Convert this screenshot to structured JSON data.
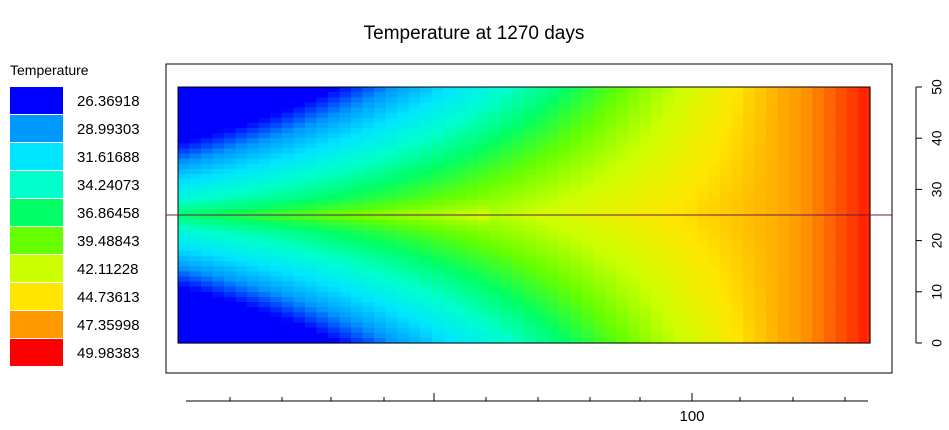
{
  "chart_data": {
    "type": "heatmap",
    "title": "Temperature at 1270 days",
    "legend": {
      "title": "Temperature",
      "placement": "left",
      "colors": [
        "#0000ff",
        "#0099ff",
        "#00e5ff",
        "#00ffcc",
        "#00ff66",
        "#66ff00",
        "#ccff00",
        "#ffe500",
        "#ff9900",
        "#ff0000"
      ],
      "labels": [
        "26.36918",
        "28.99303",
        "31.61688",
        "34.24073",
        "36.86458",
        "39.48843",
        "42.11228",
        "44.73613",
        "47.35998",
        "49.98383"
      ]
    },
    "value_range": [
      26.36918,
      49.98383
    ],
    "x_axis": {
      "tick_labels": [
        "100"
      ],
      "labeled_value": 100,
      "ylim_hint": ""
    },
    "y_axis": {
      "side": "right",
      "ticks": [
        0,
        10,
        20,
        30,
        40,
        50
      ],
      "range": [
        0,
        50
      ]
    },
    "marker_line": {
      "orientation": "horizontal",
      "y": 25,
      "color": "#6a1b4d"
    },
    "grid": false
  }
}
